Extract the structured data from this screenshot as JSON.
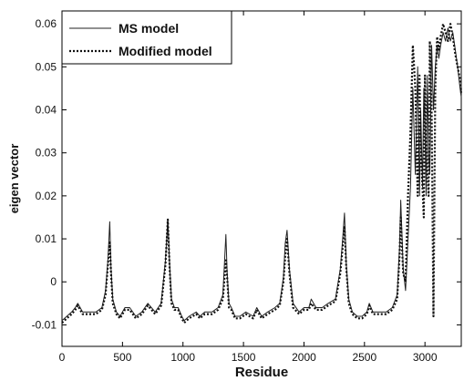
{
  "chart_data": {
    "type": "line",
    "title": "",
    "xlabel": "Residue",
    "ylabel": "eigen vector",
    "xlim": [
      0,
      3300
    ],
    "ylim": [
      -0.015,
      0.063
    ],
    "xticks": [
      0,
      500,
      1000,
      1500,
      2000,
      2500,
      3000
    ],
    "yticks": [
      -0.01,
      0,
      0.01,
      0.02,
      0.03,
      0.04,
      0.05,
      0.06
    ],
    "xtick_labels": [
      "0",
      "500",
      "1000",
      "1500",
      "2000",
      "2500",
      "3000"
    ],
    "ytick_labels": [
      "-0.01",
      "0",
      "0.01",
      "0.02",
      "0.03",
      "0.04",
      "0.05",
      "0.06"
    ],
    "grid": false,
    "legend_position": "top-left",
    "series": [
      {
        "name": "MS model",
        "style": "solid",
        "color": "#222222",
        "x": [
          0,
          40,
          80,
          110,
          130,
          170,
          220,
          280,
          330,
          360,
          380,
          395,
          405,
          420,
          450,
          480,
          520,
          560,
          610,
          660,
          710,
          770,
          820,
          855,
          875,
          890,
          905,
          930,
          960,
          990,
          1010,
          1050,
          1110,
          1140,
          1180,
          1240,
          1290,
          1330,
          1355,
          1365,
          1380,
          1400,
          1430,
          1470,
          1520,
          1580,
          1610,
          1650,
          1700,
          1760,
          1800,
          1830,
          1845,
          1860,
          1880,
          1910,
          1960,
          2000,
          2040,
          2060,
          2100,
          2150,
          2200,
          2260,
          2300,
          2320,
          2335,
          2350,
          2370,
          2400,
          2440,
          2480,
          2520,
          2540,
          2570,
          2620,
          2680,
          2730,
          2770,
          2790,
          2800,
          2820,
          2840,
          2860,
          2880,
          2900,
          2920,
          2940,
          2955,
          2965,
          2980,
          2990,
          3000,
          3010,
          3020,
          3030,
          3040,
          3055,
          3070,
          3085,
          3100,
          3115,
          3130,
          3150,
          3170,
          3190,
          3210,
          3230,
          3250,
          3270,
          3290,
          3300
        ],
        "values": [
          -0.009,
          -0.008,
          -0.007,
          -0.006,
          -0.005,
          -0.007,
          -0.007,
          -0.007,
          -0.006,
          -0.002,
          0.005,
          0.014,
          0.003,
          -0.004,
          -0.007,
          -0.008,
          -0.006,
          -0.006,
          -0.008,
          -0.007,
          -0.005,
          -0.007,
          -0.005,
          0.005,
          0.0145,
          0.004,
          -0.004,
          -0.006,
          -0.006,
          -0.008,
          -0.009,
          -0.008,
          -0.007,
          -0.008,
          -0.007,
          -0.007,
          -0.006,
          -0.003,
          0.011,
          0.002,
          -0.005,
          -0.006,
          -0.008,
          -0.008,
          -0.007,
          -0.008,
          -0.006,
          -0.008,
          -0.007,
          -0.006,
          -0.005,
          0.001,
          0.009,
          0.012,
          0.003,
          -0.005,
          -0.007,
          -0.006,
          -0.006,
          -0.004,
          -0.006,
          -0.006,
          -0.005,
          -0.004,
          0.003,
          0.01,
          0.016,
          0.004,
          -0.004,
          -0.007,
          -0.008,
          -0.008,
          -0.007,
          -0.005,
          -0.007,
          -0.007,
          -0.007,
          -0.006,
          -0.003,
          0.008,
          0.019,
          0.003,
          -0.002,
          0.01,
          0.022,
          0.045,
          0.025,
          0.05,
          0.02,
          0.04,
          0.022,
          0.045,
          0.035,
          0.02,
          0.048,
          0.03,
          0.025,
          0.055,
          0.04,
          0.05,
          0.055,
          0.052,
          0.055,
          0.058,
          0.056,
          0.059,
          0.056,
          0.058,
          0.054,
          0.05,
          0.045,
          0.043
        ],
        "notes": "solid thin line"
      },
      {
        "name": "Modified model",
        "style": "dotted",
        "color": "#111111",
        "x": [
          0,
          40,
          80,
          110,
          130,
          170,
          220,
          280,
          330,
          360,
          380,
          395,
          405,
          420,
          450,
          480,
          520,
          560,
          610,
          660,
          710,
          770,
          820,
          855,
          875,
          890,
          905,
          930,
          960,
          990,
          1010,
          1050,
          1110,
          1140,
          1180,
          1240,
          1290,
          1330,
          1355,
          1365,
          1380,
          1400,
          1430,
          1470,
          1520,
          1580,
          1610,
          1650,
          1700,
          1760,
          1800,
          1830,
          1845,
          1860,
          1880,
          1910,
          1960,
          2000,
          2040,
          2060,
          2100,
          2150,
          2200,
          2260,
          2300,
          2320,
          2335,
          2350,
          2370,
          2400,
          2440,
          2480,
          2520,
          2540,
          2570,
          2620,
          2680,
          2730,
          2770,
          2790,
          2800,
          2820,
          2840,
          2860,
          2880,
          2900,
          2920,
          2940,
          2955,
          2965,
          2980,
          2990,
          3000,
          3010,
          3020,
          3030,
          3040,
          3055,
          3070,
          3085,
          3100,
          3115,
          3130,
          3150,
          3170,
          3190,
          3210,
          3230,
          3250,
          3270,
          3290,
          3300
        ],
        "values": [
          -0.0095,
          -0.0085,
          -0.0075,
          -0.0065,
          -0.0055,
          -0.0075,
          -0.0075,
          -0.0075,
          -0.0065,
          -0.003,
          0.004,
          0.0095,
          0.002,
          -0.005,
          -0.0075,
          -0.0085,
          -0.0065,
          -0.0065,
          -0.0085,
          -0.0075,
          -0.0055,
          -0.0075,
          -0.0055,
          0.004,
          0.0145,
          0.003,
          -0.005,
          -0.0065,
          -0.0065,
          -0.0085,
          -0.0095,
          -0.0085,
          -0.0075,
          -0.0085,
          -0.0075,
          -0.0075,
          -0.0065,
          -0.004,
          0.005,
          0.001,
          -0.006,
          -0.0065,
          -0.0085,
          -0.0085,
          -0.0075,
          -0.0085,
          -0.0065,
          -0.0085,
          -0.0075,
          -0.0065,
          -0.0055,
          0.0,
          0.006,
          0.01,
          0.002,
          -0.006,
          -0.0075,
          -0.0065,
          -0.0065,
          -0.005,
          -0.0065,
          -0.0065,
          -0.0055,
          -0.0045,
          0.002,
          0.008,
          0.013,
          0.003,
          -0.005,
          -0.0075,
          -0.0085,
          -0.0085,
          -0.0075,
          -0.0055,
          -0.0075,
          -0.0075,
          -0.0075,
          -0.0065,
          -0.004,
          0.006,
          0.015,
          0.002,
          0.0,
          0.02,
          0.035,
          0.055,
          0.045,
          0.02,
          0.048,
          0.03,
          0.022,
          0.015,
          0.048,
          0.035,
          0.025,
          0.02,
          0.056,
          0.04,
          -0.008,
          0.045,
          0.057,
          0.054,
          0.057,
          0.06,
          0.058,
          0.056,
          0.06,
          0.057,
          0.053,
          0.05,
          0.047,
          0.044
        ]
      }
    ]
  },
  "legend": {
    "items": [
      {
        "label": "MS model"
      },
      {
        "label": "Modified model"
      }
    ]
  }
}
